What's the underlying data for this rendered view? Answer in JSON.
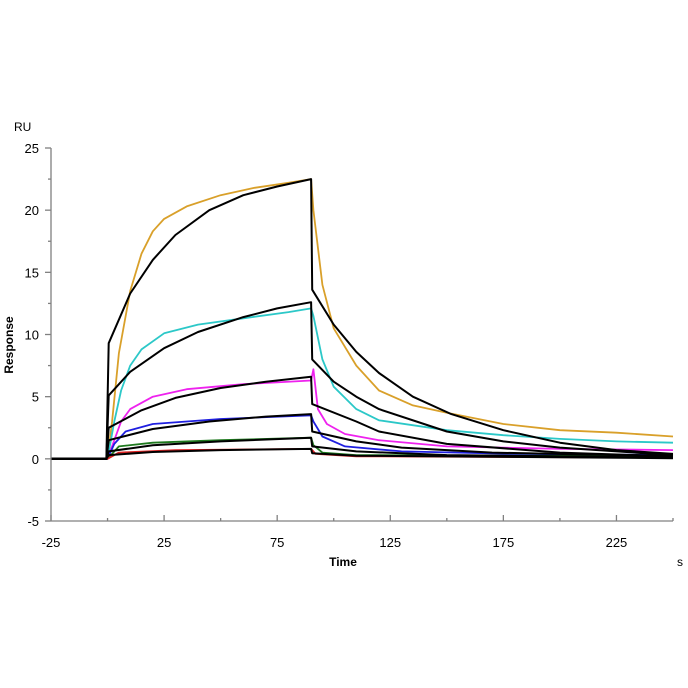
{
  "chart_data": {
    "type": "line",
    "title": "",
    "xlabel": "Time",
    "xunit": "s",
    "ylabel": "Response",
    "yunit": "RU",
    "xlim": [
      -25,
      250
    ],
    "ylim": [
      -5,
      25
    ],
    "xticks": [
      -25,
      25,
      75,
      125,
      175,
      225
    ],
    "xtick_labels": [
      "-25",
      "25",
      "75",
      "125",
      "175",
      "225"
    ],
    "yticks": [
      -5,
      0,
      5,
      10,
      15,
      20,
      25
    ],
    "ytick_labels": [
      "-5",
      "0",
      "5",
      "10",
      "15",
      "20",
      "25"
    ],
    "grid": false,
    "legend": "none",
    "series": [
      {
        "name": "data-orange",
        "color": "#d9a02a",
        "kind": "data",
        "points": [
          [
            -25,
            0
          ],
          [
            0,
            0
          ],
          [
            2,
            3
          ],
          [
            5,
            8.5
          ],
          [
            10,
            13.5
          ],
          [
            15,
            16.5
          ],
          [
            20,
            18.3
          ],
          [
            25,
            19.3
          ],
          [
            35,
            20.3
          ],
          [
            50,
            21.2
          ],
          [
            65,
            21.8
          ],
          [
            80,
            22.2
          ],
          [
            90,
            22.5
          ],
          [
            91,
            20
          ],
          [
            95,
            14
          ],
          [
            100,
            10.5
          ],
          [
            110,
            7.5
          ],
          [
            120,
            5.5
          ],
          [
            135,
            4.3
          ],
          [
            150,
            3.7
          ],
          [
            175,
            2.8
          ],
          [
            200,
            2.3
          ],
          [
            225,
            2.1
          ],
          [
            250,
            1.8
          ]
        ]
      },
      {
        "name": "data-cyan",
        "color": "#2cc8c8",
        "kind": "data",
        "points": [
          [
            -25,
            0
          ],
          [
            0,
            0
          ],
          [
            3,
            3
          ],
          [
            6,
            5.5
          ],
          [
            10,
            7.5
          ],
          [
            15,
            8.8
          ],
          [
            25,
            10.1
          ],
          [
            40,
            10.8
          ],
          [
            60,
            11.3
          ],
          [
            80,
            11.8
          ],
          [
            90,
            12.1
          ],
          [
            91,
            11.5
          ],
          [
            95,
            8
          ],
          [
            100,
            5.8
          ],
          [
            110,
            4
          ],
          [
            120,
            3.1
          ],
          [
            150,
            2.3
          ],
          [
            175,
            1.9
          ],
          [
            200,
            1.6
          ],
          [
            225,
            1.4
          ],
          [
            250,
            1.3
          ]
        ]
      },
      {
        "name": "data-magenta",
        "color": "#ee22ee",
        "kind": "data",
        "points": [
          [
            -25,
            0
          ],
          [
            0,
            0
          ],
          [
            3,
            1.5
          ],
          [
            6,
            3
          ],
          [
            10,
            4
          ],
          [
            20,
            5
          ],
          [
            35,
            5.6
          ],
          [
            60,
            6
          ],
          [
            90,
            6.3
          ],
          [
            91,
            7.2
          ],
          [
            93,
            4
          ],
          [
            97,
            2.8
          ],
          [
            105,
            2.0
          ],
          [
            120,
            1.5
          ],
          [
            150,
            1.0
          ],
          [
            200,
            0.8
          ],
          [
            250,
            0.7
          ]
        ]
      },
      {
        "name": "data-blue",
        "color": "#1f1fe0",
        "kind": "data",
        "points": [
          [
            -25,
            0
          ],
          [
            0,
            0
          ],
          [
            3,
            1.2
          ],
          [
            8,
            2.2
          ],
          [
            20,
            2.8
          ],
          [
            50,
            3.2
          ],
          [
            90,
            3.5
          ],
          [
            91,
            3.0
          ],
          [
            95,
            1.8
          ],
          [
            105,
            1.0
          ],
          [
            130,
            0.6
          ],
          [
            180,
            0.4
          ],
          [
            250,
            0.3
          ]
        ]
      },
      {
        "name": "data-green",
        "color": "#1f7a1f",
        "kind": "data",
        "points": [
          [
            -25,
            0
          ],
          [
            0,
            0
          ],
          [
            5,
            1.0
          ],
          [
            20,
            1.3
          ],
          [
            50,
            1.5
          ],
          [
            90,
            1.7
          ],
          [
            91,
            1.1
          ],
          [
            95,
            0.5
          ],
          [
            110,
            0.3
          ],
          [
            250,
            0.2
          ]
        ]
      },
      {
        "name": "data-red",
        "color": "#dd2222",
        "kind": "data",
        "points": [
          [
            -25,
            0
          ],
          [
            0,
            0
          ],
          [
            5,
            0.5
          ],
          [
            30,
            0.7
          ],
          [
            90,
            0.8
          ],
          [
            92,
            0.4
          ],
          [
            110,
            0.2
          ],
          [
            250,
            0.1
          ]
        ]
      },
      {
        "name": "fit-1",
        "color": "#000000",
        "kind": "fit",
        "points": [
          [
            -25,
            0
          ],
          [
            -0.5,
            0
          ],
          [
            0.5,
            9.3
          ],
          [
            10,
            13.3
          ],
          [
            20,
            16.0
          ],
          [
            30,
            18.0
          ],
          [
            45,
            20.0
          ],
          [
            60,
            21.2
          ],
          [
            75,
            21.9
          ],
          [
            90,
            22.5
          ],
          [
            90.5,
            13.6
          ],
          [
            100,
            10.8
          ],
          [
            110,
            8.6
          ],
          [
            120,
            6.9
          ],
          [
            135,
            5.0
          ],
          [
            152,
            3.6
          ],
          [
            175,
            2.3
          ],
          [
            200,
            1.3
          ],
          [
            225,
            0.7
          ],
          [
            250,
            0.4
          ]
        ]
      },
      {
        "name": "fit-2",
        "color": "#000000",
        "kind": "fit",
        "points": [
          [
            -25,
            0
          ],
          [
            -0.5,
            0
          ],
          [
            0.5,
            5.1
          ],
          [
            10,
            7.0
          ],
          [
            25,
            8.9
          ],
          [
            40,
            10.2
          ],
          [
            60,
            11.4
          ],
          [
            75,
            12.1
          ],
          [
            90,
            12.6
          ],
          [
            90.5,
            8.0
          ],
          [
            100,
            6.2
          ],
          [
            110,
            5.0
          ],
          [
            120,
            4.0
          ],
          [
            150,
            2.2
          ],
          [
            175,
            1.4
          ],
          [
            200,
            0.9
          ],
          [
            250,
            0.3
          ]
        ]
      },
      {
        "name": "fit-3",
        "color": "#000000",
        "kind": "fit",
        "points": [
          [
            -25,
            0
          ],
          [
            -0.5,
            0
          ],
          [
            0.5,
            2.5
          ],
          [
            15,
            3.9
          ],
          [
            30,
            4.9
          ],
          [
            50,
            5.7
          ],
          [
            70,
            6.2
          ],
          [
            90,
            6.6
          ],
          [
            90.5,
            4.4
          ],
          [
            110,
            3.0
          ],
          [
            120,
            2.2
          ],
          [
            150,
            1.2
          ],
          [
            200,
            0.5
          ],
          [
            250,
            0.2
          ]
        ]
      },
      {
        "name": "fit-4",
        "color": "#000000",
        "kind": "fit",
        "points": [
          [
            -25,
            0
          ],
          [
            -0.5,
            0
          ],
          [
            0.5,
            1.5
          ],
          [
            20,
            2.4
          ],
          [
            45,
            3.0
          ],
          [
            70,
            3.4
          ],
          [
            90,
            3.6
          ],
          [
            90.5,
            2.2
          ],
          [
            110,
            1.4
          ],
          [
            130,
            0.9
          ],
          [
            170,
            0.5
          ],
          [
            250,
            0.2
          ]
        ]
      },
      {
        "name": "fit-5",
        "color": "#000000",
        "kind": "fit",
        "points": [
          [
            -25,
            0
          ],
          [
            -0.5,
            0
          ],
          [
            0.5,
            0.6
          ],
          [
            20,
            1.1
          ],
          [
            50,
            1.4
          ],
          [
            90,
            1.7
          ],
          [
            90.5,
            1.0
          ],
          [
            110,
            0.6
          ],
          [
            150,
            0.3
          ],
          [
            250,
            0.1
          ]
        ]
      },
      {
        "name": "fit-6",
        "color": "#000000",
        "kind": "fit",
        "points": [
          [
            -25,
            0
          ],
          [
            -0.5,
            0
          ],
          [
            0.5,
            0.3
          ],
          [
            20,
            0.55
          ],
          [
            50,
            0.7
          ],
          [
            90,
            0.8
          ],
          [
            90.5,
            0.45
          ],
          [
            110,
            0.25
          ],
          [
            250,
            0.05
          ]
        ]
      }
    ]
  }
}
